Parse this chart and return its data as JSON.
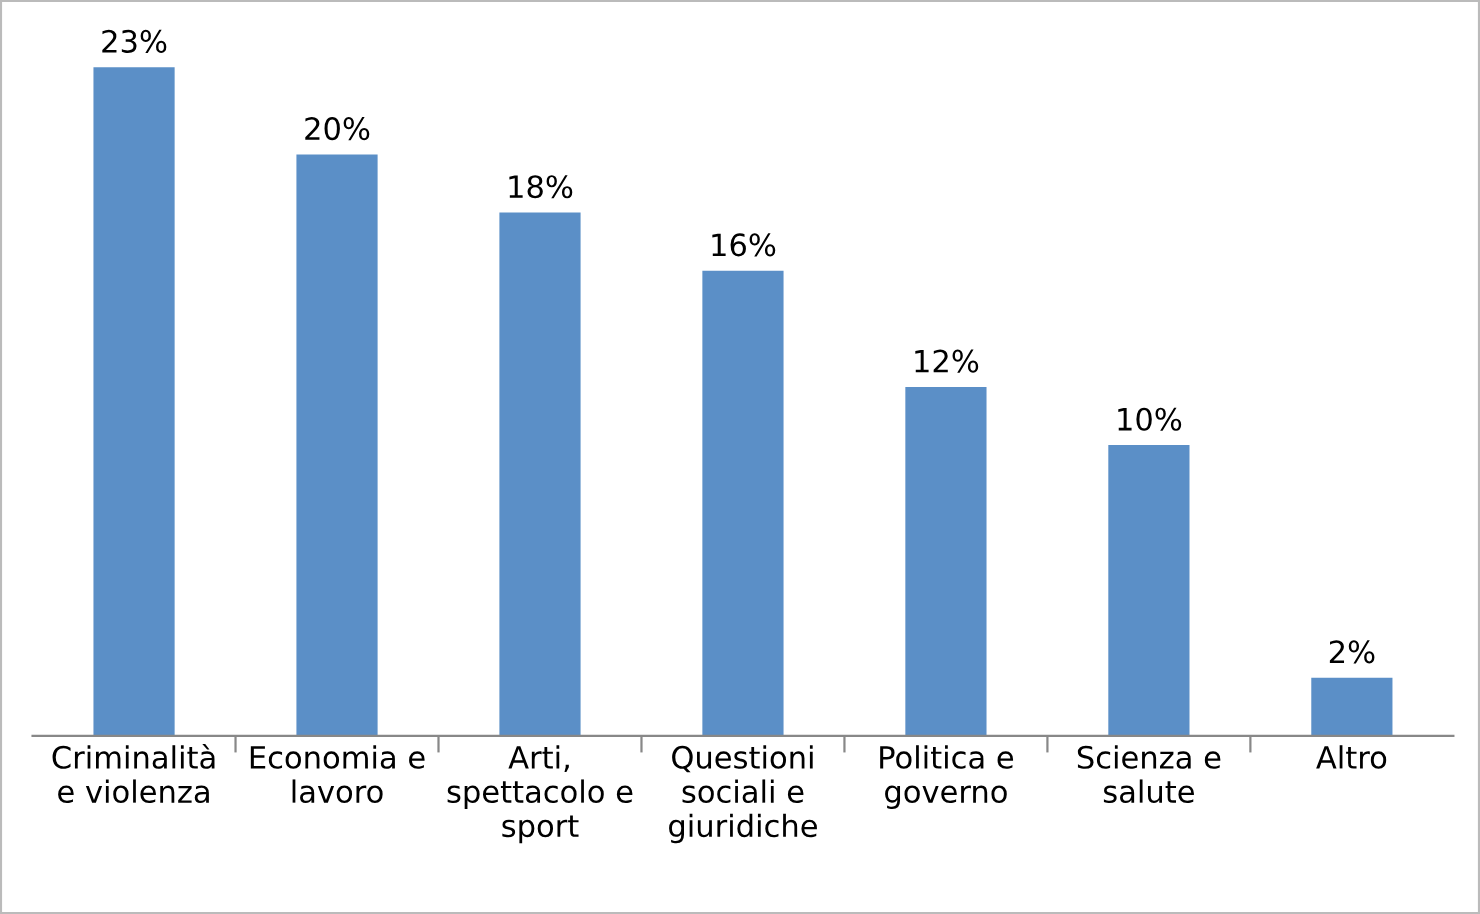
{
  "chart_data": {
    "type": "bar",
    "categories": [
      "Criminalità\ne violenza",
      "Economia e\nlavoro",
      "Arti,\nspettacolo e\nsport",
      "Questioni\nsociali e\ngiuridiche",
      "Politica e\ngoverno",
      "Scienza e\nsalute",
      "Altro"
    ],
    "values": [
      23,
      20,
      18,
      16,
      12,
      10,
      2
    ],
    "value_labels": [
      "23%",
      "20%",
      "18%",
      "16%",
      "12%",
      "10%",
      "2%"
    ],
    "color": "#5b8fc7",
    "tick_labels": "x",
    "grid": false,
    "legend": false
  }
}
